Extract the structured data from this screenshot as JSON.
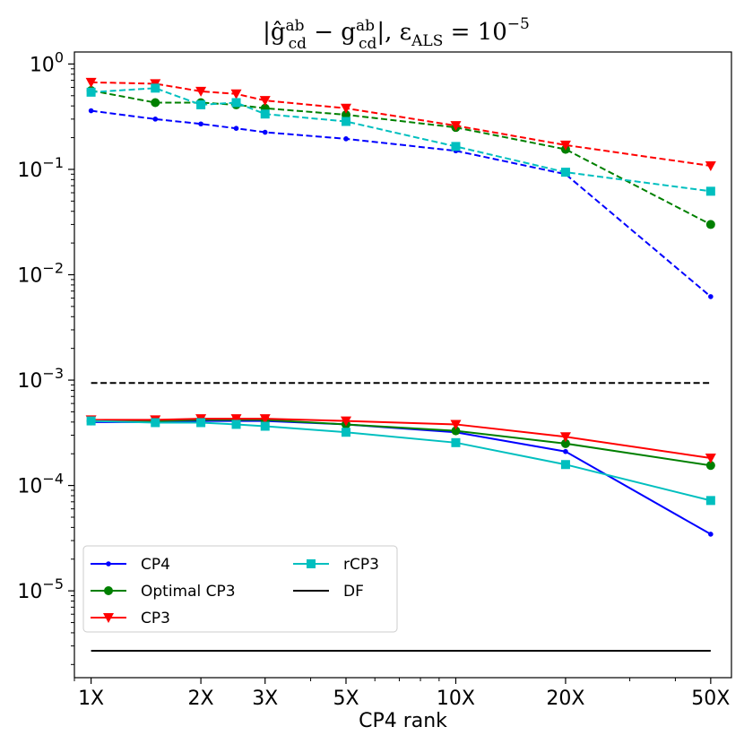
{
  "chart_data": {
    "type": "line",
    "title": "|ĝ",
    "title_parts": {
      "lhs_sup": "ab",
      "lhs_sub": "cd",
      "minus": " − g",
      "rhs_sup": "ab",
      "rhs_sub": "cd",
      "close": "|, ε",
      "eps_sub": "ALS",
      "eq": " = 10",
      "exp": "−5"
    },
    "xlabel": "CP4 rank",
    "ylabel": "",
    "xscale": "log",
    "yscale": "log",
    "xlim": [
      0.9,
      57
    ],
    "ylim": [
      1.5e-06,
      1.3
    ],
    "grid": false,
    "legend_placement": "lower-left",
    "legend_columns": 2,
    "x_ticks": [
      {
        "value": 1,
        "label": "1X"
      },
      {
        "value": 2,
        "label": "2X"
      },
      {
        "value": 3,
        "label": "3X"
      },
      {
        "value": 5,
        "label": "5X"
      },
      {
        "value": 10,
        "label": "10X"
      },
      {
        "value": 20,
        "label": "20X"
      },
      {
        "value": 50,
        "label": "50X"
      }
    ],
    "y_ticks": [
      {
        "value": 1,
        "base": "10",
        "exp": "0"
      },
      {
        "value": 0.1,
        "base": "10",
        "exp": "−1"
      },
      {
        "value": 0.01,
        "base": "10",
        "exp": "−2"
      },
      {
        "value": 0.001,
        "base": "10",
        "exp": "−3"
      },
      {
        "value": 0.0001,
        "base": "10",
        "exp": "−4"
      },
      {
        "value": 1e-05,
        "base": "10",
        "exp": "−5"
      }
    ],
    "x": [
      1,
      1.5,
      2,
      2.5,
      3,
      5,
      10,
      20,
      50
    ],
    "series": [
      {
        "name": "CP4",
        "color": "#0000ff",
        "marker": "dot",
        "style": "dashed",
        "group": "upper",
        "values": [
          0.36,
          0.3,
          0.27,
          0.245,
          0.225,
          0.195,
          0.15,
          0.09,
          0.0062
        ]
      },
      {
        "name": "Optimal CP3",
        "color": "#008000",
        "marker": "circle",
        "style": "dashed",
        "group": "upper",
        "values": [
          0.56,
          0.43,
          0.43,
          0.41,
          0.38,
          0.33,
          0.25,
          0.155,
          0.03
        ]
      },
      {
        "name": "CP3",
        "color": "#ff0000",
        "marker": "triangle-down",
        "style": "dashed",
        "group": "upper",
        "values": [
          0.67,
          0.65,
          0.55,
          0.52,
          0.45,
          0.38,
          0.26,
          0.17,
          0.108
        ]
      },
      {
        "name": "rCP3",
        "color": "#00bfbf",
        "marker": "square",
        "style": "dashed",
        "group": "upper",
        "values": [
          0.54,
          0.59,
          0.41,
          0.43,
          0.335,
          0.285,
          0.165,
          0.094,
          0.062
        ]
      },
      {
        "name": "DF",
        "color": "#000000",
        "marker": "none",
        "style": "dashed",
        "group": "upper",
        "x": [
          1,
          50
        ],
        "values": [
          0.00094,
          0.00094
        ]
      },
      {
        "name": "CP4",
        "color": "#0000ff",
        "marker": "dot",
        "style": "solid",
        "group": "lower",
        "values": [
          0.0004,
          0.0004,
          0.00041,
          0.00041,
          0.00041,
          0.00038,
          0.00032,
          0.00021,
          3.45e-05
        ]
      },
      {
        "name": "Optimal CP3",
        "color": "#008000",
        "marker": "circle",
        "style": "solid",
        "group": "lower",
        "values": [
          0.00041,
          0.00041,
          0.00042,
          0.00042,
          0.00042,
          0.00038,
          0.00033,
          0.00025,
          0.000155
        ]
      },
      {
        "name": "CP3",
        "color": "#ff0000",
        "marker": "triangle-down",
        "style": "solid",
        "group": "lower",
        "values": [
          0.00042,
          0.00042,
          0.00043,
          0.00043,
          0.00043,
          0.00041,
          0.00038,
          0.00029,
          0.000182
        ]
      },
      {
        "name": "rCP3",
        "color": "#00bfbf",
        "marker": "square",
        "style": "solid",
        "group": "lower",
        "values": [
          0.00041,
          0.000395,
          0.000395,
          0.00038,
          0.000365,
          0.00032,
          0.000255,
          0.000158,
          7.2e-05
        ]
      },
      {
        "name": "DF",
        "color": "#000000",
        "marker": "none",
        "style": "solid",
        "group": "lower",
        "x": [
          1,
          50
        ],
        "values": [
          2.7e-06,
          2.7e-06
        ]
      }
    ],
    "legend": [
      {
        "label": "CP4",
        "color": "#0000ff",
        "marker": "dot"
      },
      {
        "label": "Optimal CP3",
        "color": "#008000",
        "marker": "circle"
      },
      {
        "label": "CP3",
        "color": "#ff0000",
        "marker": "triangle-down"
      },
      {
        "label": "rCP3",
        "color": "#00bfbf",
        "marker": "square"
      },
      {
        "label": "DF",
        "color": "#000000",
        "marker": "none"
      }
    ]
  }
}
